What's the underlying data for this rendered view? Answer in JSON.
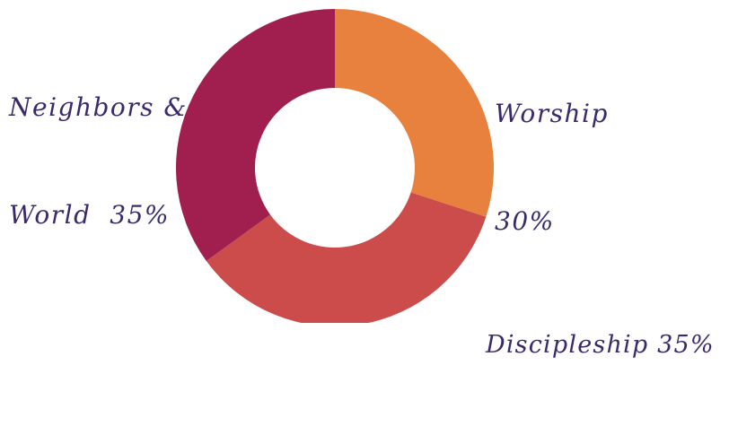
{
  "chart_data": {
    "type": "pie",
    "donut": true,
    "slices": [
      {
        "label": "Worship",
        "value": 30,
        "color": "#e8813e"
      },
      {
        "label": "Discipleship",
        "value": 35,
        "color": "#cc4b4b"
      },
      {
        "label": "Neighbors & World",
        "value": 35,
        "color": "#a01f4f"
      }
    ],
    "labels": {
      "worship": {
        "line1": "Worship",
        "line2": "30%"
      },
      "discipleship": {
        "line1": "Discipleship 35%"
      },
      "neighbors": {
        "line1": "Neighbors &",
        "line2": "World  35%"
      }
    },
    "legend": "none"
  }
}
